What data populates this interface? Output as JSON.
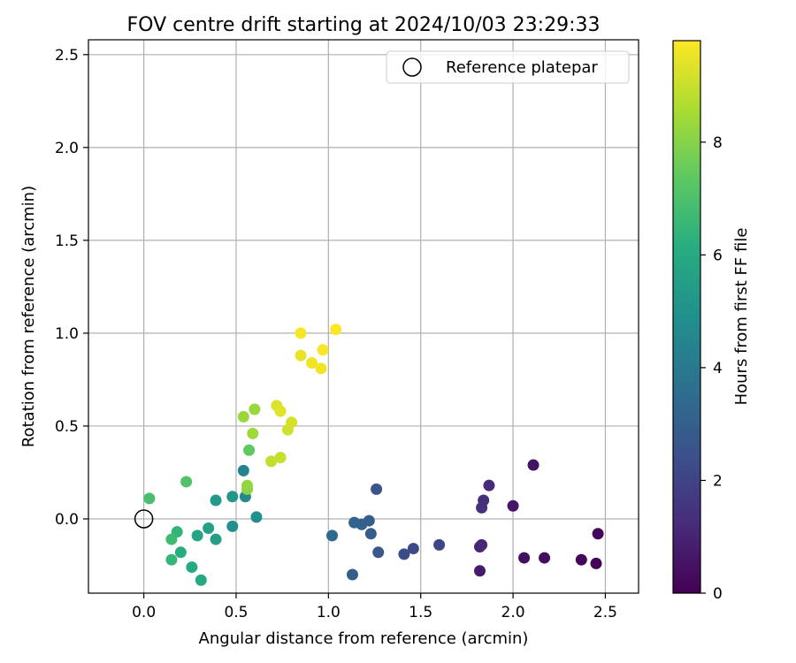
{
  "chart_data": {
    "type": "scatter",
    "title": "FOV centre drift starting at 2024/10/03 23:29:33",
    "xlabel": "Angular distance from reference (arcmin)",
    "ylabel": "Rotation from reference (arcmin)",
    "xlim": [
      -0.3,
      2.68
    ],
    "ylim": [
      -0.4,
      2.58
    ],
    "xticks": [
      0.0,
      0.5,
      1.0,
      1.5,
      2.0,
      2.5
    ],
    "xtick_labels": [
      "0.0",
      "0.5",
      "1.0",
      "1.5",
      "2.0",
      "2.5"
    ],
    "yticks": [
      0.0,
      0.5,
      1.0,
      1.5,
      2.0,
      2.5
    ],
    "ytick_labels": [
      "0.0",
      "0.5",
      "1.0",
      "1.5",
      "2.0",
      "2.5"
    ],
    "grid": true,
    "legend": {
      "position": "top-right",
      "entries": [
        "Reference platepar"
      ]
    },
    "reference_point": {
      "label": "Reference platepar",
      "x": 0.0,
      "y": 0.0,
      "marker": "open-circle"
    },
    "colorbar": {
      "label": "Hours from first FF file",
      "colormap": "viridis",
      "range": [
        0,
        9.8
      ],
      "ticks": [
        0,
        2,
        4,
        6,
        8
      ],
      "tick_labels": [
        "0",
        "2",
        "4",
        "6",
        "8"
      ]
    },
    "points": [
      {
        "x": 2.45,
        "y": -0.24,
        "t": 0.1
      },
      {
        "x": 2.37,
        "y": -0.22,
        "t": 0.15
      },
      {
        "x": 2.46,
        "y": -0.08,
        "t": 0.2
      },
      {
        "x": 2.17,
        "y": -0.21,
        "t": 0.35
      },
      {
        "x": 2.06,
        "y": -0.21,
        "t": 0.4
      },
      {
        "x": 2.11,
        "y": 0.29,
        "t": 0.5
      },
      {
        "x": 2.0,
        "y": 0.07,
        "t": 0.6
      },
      {
        "x": 1.82,
        "y": -0.28,
        "t": 0.75
      },
      {
        "x": 1.82,
        "y": -0.15,
        "t": 1.0
      },
      {
        "x": 1.83,
        "y": -0.14,
        "t": 1.1
      },
      {
        "x": 1.87,
        "y": 0.18,
        "t": 1.2
      },
      {
        "x": 1.84,
        "y": 0.1,
        "t": 1.3
      },
      {
        "x": 1.83,
        "y": 0.06,
        "t": 1.4
      },
      {
        "x": 1.6,
        "y": -0.14,
        "t": 2.1
      },
      {
        "x": 1.46,
        "y": -0.16,
        "t": 2.2
      },
      {
        "x": 1.41,
        "y": -0.19,
        "t": 2.3
      },
      {
        "x": 1.26,
        "y": 0.16,
        "t": 2.6
      },
      {
        "x": 1.27,
        "y": -0.18,
        "t": 2.7
      },
      {
        "x": 1.23,
        "y": -0.08,
        "t": 2.9
      },
      {
        "x": 1.22,
        "y": -0.01,
        "t": 3.0
      },
      {
        "x": 1.18,
        "y": -0.03,
        "t": 3.1
      },
      {
        "x": 1.14,
        "y": -0.02,
        "t": 3.2
      },
      {
        "x": 1.13,
        "y": -0.3,
        "t": 3.0
      },
      {
        "x": 1.02,
        "y": -0.09,
        "t": 3.5
      },
      {
        "x": 0.54,
        "y": 0.26,
        "t": 4.4
      },
      {
        "x": 0.55,
        "y": 0.12,
        "t": 4.6
      },
      {
        "x": 0.61,
        "y": 0.01,
        "t": 4.9
      },
      {
        "x": 0.48,
        "y": -0.04,
        "t": 4.9
      },
      {
        "x": 0.48,
        "y": 0.12,
        "t": 5.2
      },
      {
        "x": 0.39,
        "y": 0.1,
        "t": 5.3
      },
      {
        "x": 0.39,
        "y": -0.11,
        "t": 5.5
      },
      {
        "x": 0.35,
        "y": -0.05,
        "t": 5.6
      },
      {
        "x": 0.29,
        "y": -0.09,
        "t": 5.8
      },
      {
        "x": 0.31,
        "y": -0.33,
        "t": 5.9
      },
      {
        "x": 0.26,
        "y": -0.26,
        "t": 6.0
      },
      {
        "x": 0.2,
        "y": -0.18,
        "t": 6.1
      },
      {
        "x": 0.18,
        "y": -0.07,
        "t": 6.4
      },
      {
        "x": 0.15,
        "y": -0.22,
        "t": 6.5
      },
      {
        "x": 0.15,
        "y": -0.11,
        "t": 6.7
      },
      {
        "x": 0.03,
        "y": 0.11,
        "t": 6.9
      },
      {
        "x": 0.23,
        "y": 0.2,
        "t": 7.1
      },
      {
        "x": 0.57,
        "y": 0.37,
        "t": 7.4
      },
      {
        "x": 0.56,
        "y": 0.16,
        "t": 8.1
      },
      {
        "x": 0.56,
        "y": 0.18,
        "t": 8.2
      },
      {
        "x": 0.54,
        "y": 0.55,
        "t": 8.3
      },
      {
        "x": 0.59,
        "y": 0.46,
        "t": 8.4
      },
      {
        "x": 0.6,
        "y": 0.59,
        "t": 8.3
      },
      {
        "x": 0.69,
        "y": 0.31,
        "t": 8.9
      },
      {
        "x": 0.74,
        "y": 0.33,
        "t": 9.0
      },
      {
        "x": 0.78,
        "y": 0.48,
        "t": 9.1
      },
      {
        "x": 0.8,
        "y": 0.52,
        "t": 9.2
      },
      {
        "x": 0.72,
        "y": 0.61,
        "t": 9.3
      },
      {
        "x": 0.74,
        "y": 0.58,
        "t": 9.4
      },
      {
        "x": 0.85,
        "y": 0.88,
        "t": 9.5
      },
      {
        "x": 0.91,
        "y": 0.84,
        "t": 9.6
      },
      {
        "x": 0.96,
        "y": 0.81,
        "t": 9.6
      },
      {
        "x": 0.97,
        "y": 0.91,
        "t": 9.7
      },
      {
        "x": 0.85,
        "y": 1.0,
        "t": 9.7
      },
      {
        "x": 1.04,
        "y": 1.02,
        "t": 9.8
      }
    ]
  }
}
